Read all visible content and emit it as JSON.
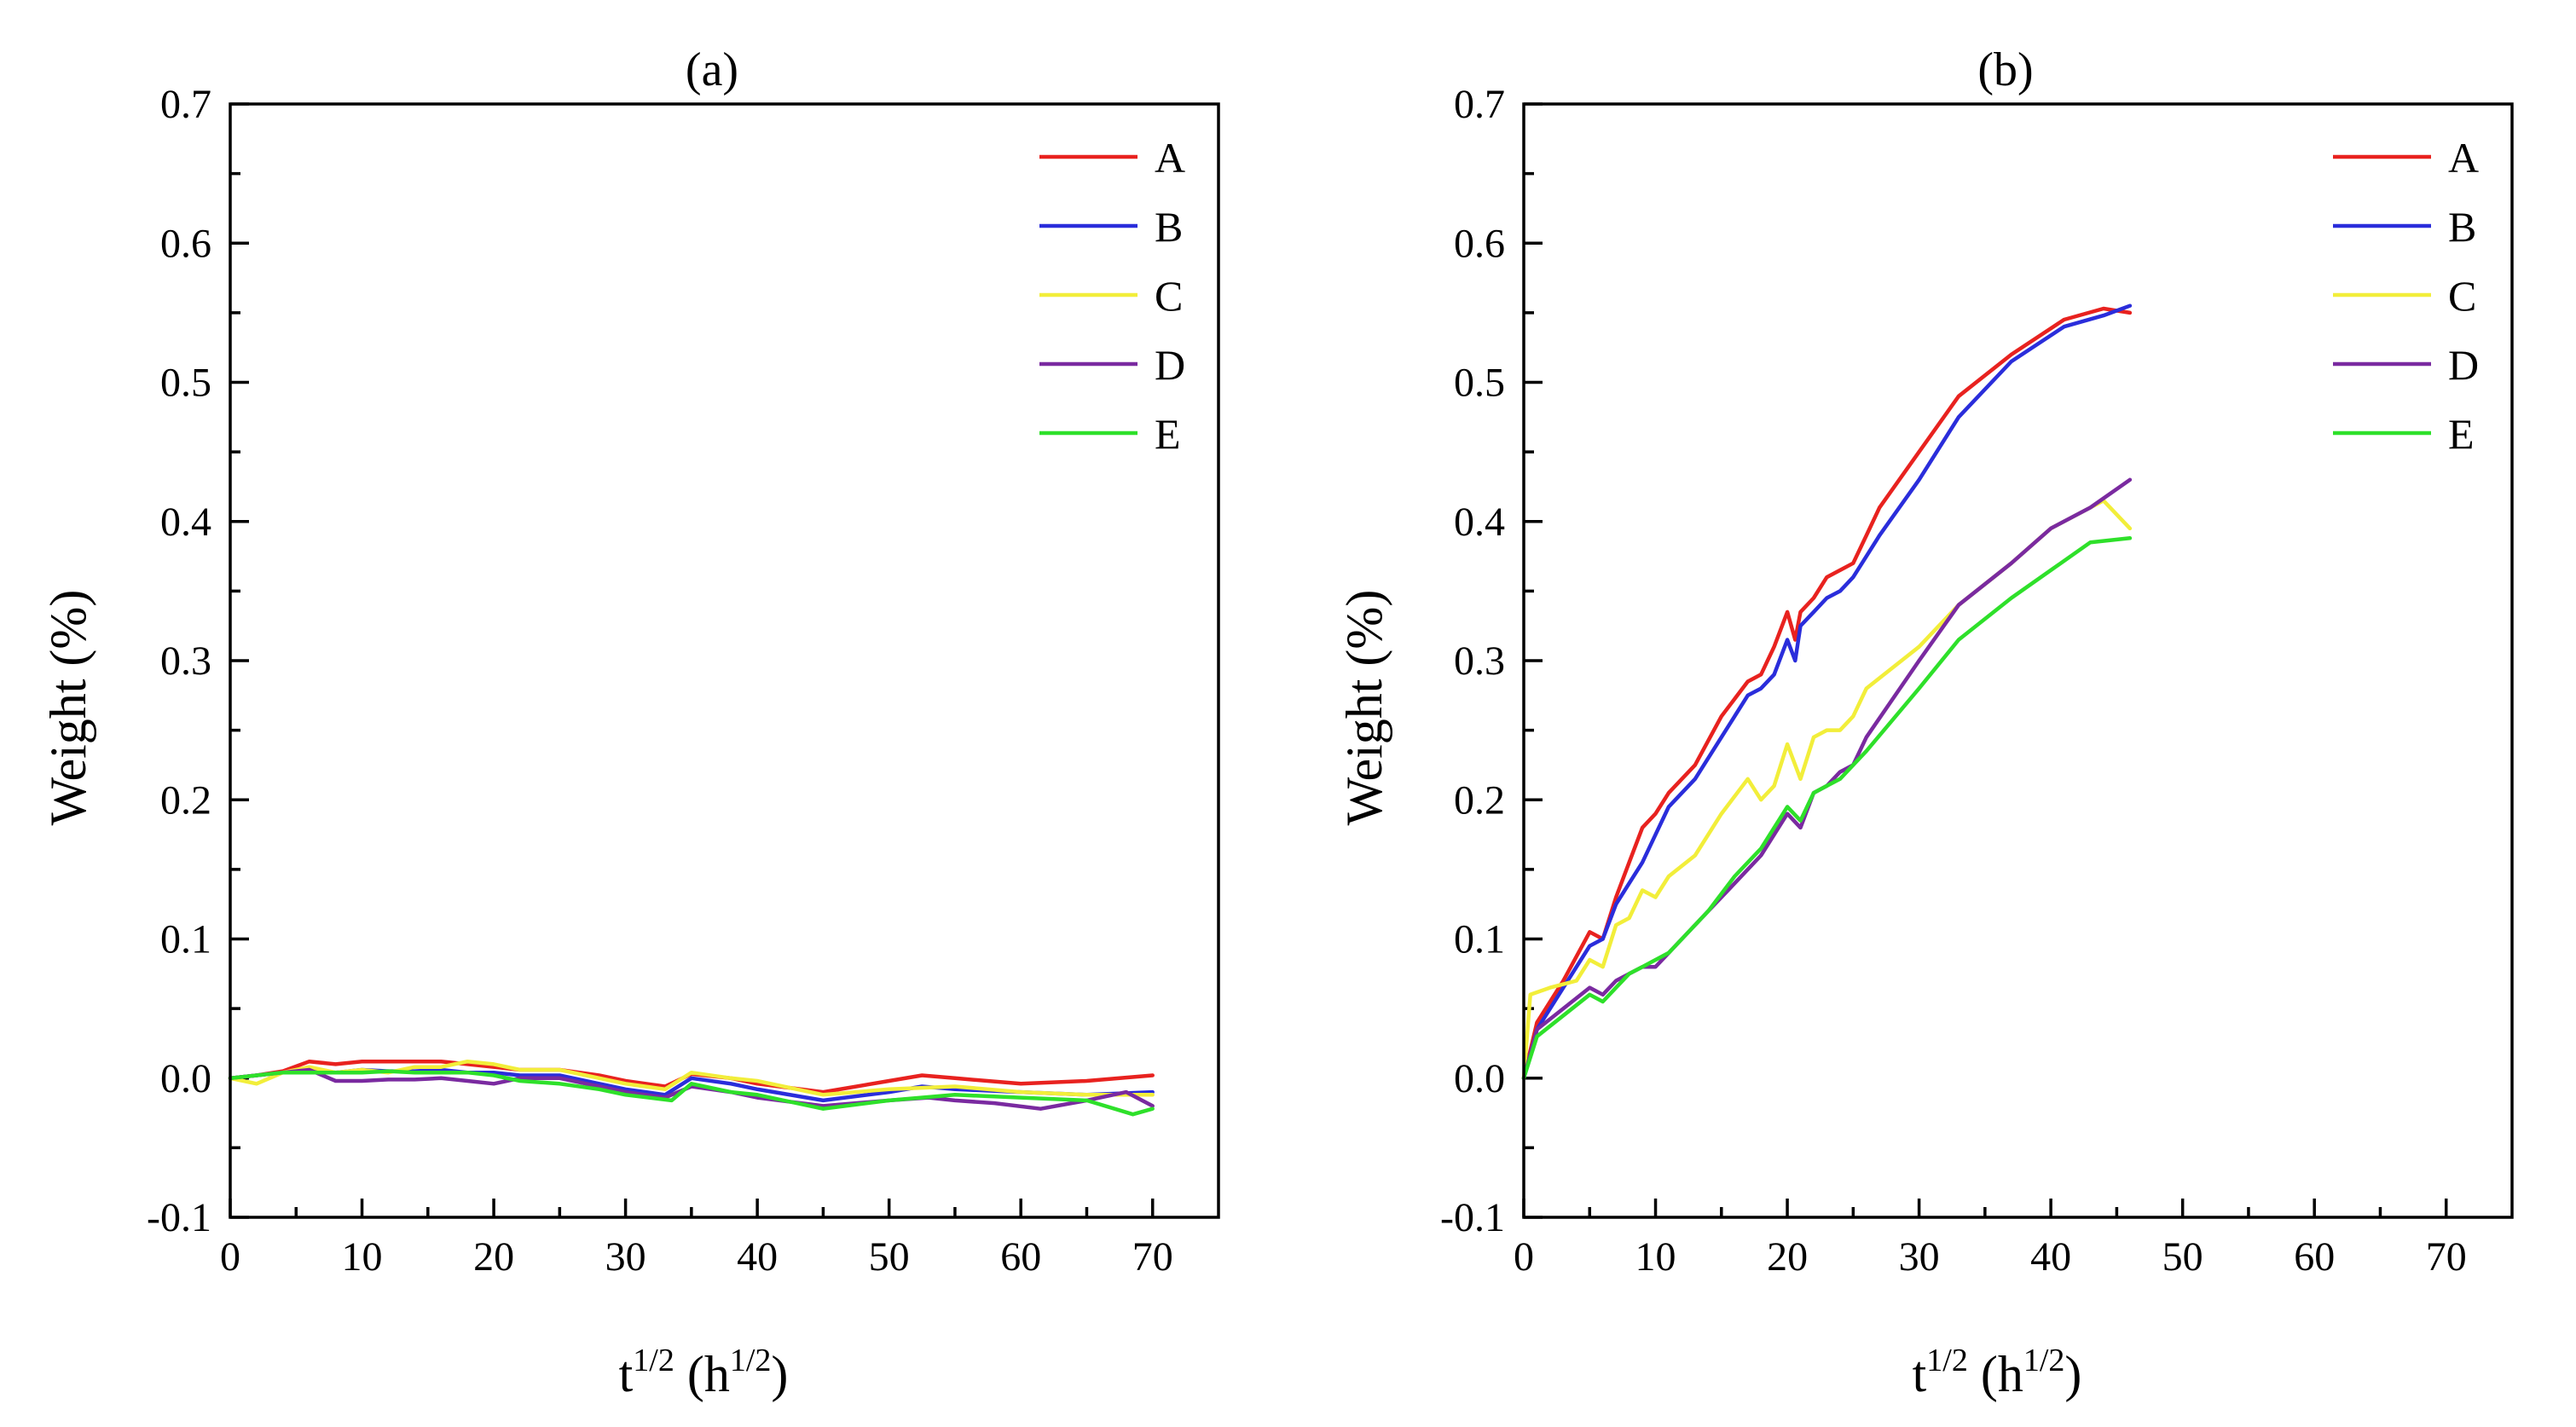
{
  "chart_data": [
    {
      "type": "line",
      "title": "(a)",
      "xlabel_base": "t",
      "xlabel_base_sup": "1/2",
      "xlabel_unit": "h",
      "xlabel_unit_sup": "1/2",
      "ylabel": "Weight (%)",
      "xlim": [
        0,
        75
      ],
      "ylim": [
        -0.1,
        0.7
      ],
      "xticks": [
        0,
        10,
        20,
        30,
        40,
        50,
        60,
        70
      ],
      "xtick_labels": [
        "0",
        "10",
        "20",
        "30",
        "40",
        "50",
        "60",
        "70"
      ],
      "yticks": [
        -0.1,
        0,
        0.1,
        0.2,
        0.3,
        0.4,
        0.5,
        0.6,
        0.7
      ],
      "ytick_labels": [
        "-0.1",
        "0.0",
        "0.1",
        "0.2",
        "0.3",
        "0.4",
        "0.5",
        "0.6",
        "0.7"
      ],
      "grid": false,
      "legend_position": "top-right",
      "series": [
        {
          "name": "A",
          "color": "#e8221f",
          "x": [
            0,
            2,
            4,
            6,
            8,
            10,
            12,
            14,
            16,
            18,
            20,
            22,
            25,
            28,
            30,
            33,
            35,
            38,
            40,
            45,
            50,
            52.5,
            55,
            60,
            65,
            70
          ],
          "y": [
            0,
            0.002,
            0.005,
            0.012,
            0.01,
            0.012,
            0.012,
            0.012,
            0.012,
            0.01,
            0.008,
            0.006,
            0.006,
            0.002,
            -0.002,
            -0.006,
            0.003,
            0.0,
            -0.004,
            -0.01,
            -0.002,
            0.002,
            0.0,
            -0.004,
            -0.002,
            0.002
          ]
        },
        {
          "name": "B",
          "color": "#2a2ddb",
          "x": [
            0,
            2,
            4,
            6,
            8,
            10,
            12,
            14,
            16,
            18,
            20,
            22,
            25,
            28,
            30,
            33,
            35,
            38,
            40,
            45,
            50,
            52.5,
            55,
            60,
            65,
            70
          ],
          "y": [
            0,
            0.002,
            0.004,
            0.006,
            0.004,
            0.006,
            0.005,
            0.005,
            0.006,
            0.004,
            0.004,
            0.002,
            0.002,
            -0.004,
            -0.008,
            -0.012,
            0.0,
            -0.004,
            -0.008,
            -0.016,
            -0.01,
            -0.006,
            -0.008,
            -0.01,
            -0.012,
            -0.01
          ]
        },
        {
          "name": "C",
          "color": "#f2ee3a",
          "x": [
            0,
            2,
            4,
            6,
            8,
            10,
            12,
            14,
            16,
            18,
            20,
            22,
            25,
            28,
            30,
            33,
            35,
            38,
            40,
            45,
            50,
            55,
            60,
            65,
            70
          ],
          "y": [
            0,
            -0.004,
            0.004,
            0.008,
            0.004,
            0.006,
            0.004,
            0.008,
            0.008,
            0.012,
            0.01,
            0.006,
            0.006,
            0.0,
            -0.004,
            -0.008,
            0.004,
            0.0,
            -0.002,
            -0.012,
            -0.008,
            -0.006,
            -0.01,
            -0.012,
            -0.012
          ]
        },
        {
          "name": "D",
          "color": "#7a2aa0",
          "x": [
            0,
            2,
            4,
            6,
            8,
            10,
            12,
            14,
            16,
            18,
            20,
            22,
            25,
            28,
            30,
            33,
            35,
            38,
            40,
            45,
            50,
            53,
            55,
            58,
            61.5,
            65,
            68,
            70
          ],
          "y": [
            0,
            0.002,
            0.004,
            0.006,
            -0.002,
            -0.002,
            -0.001,
            -0.001,
            0.0,
            -0.002,
            -0.004,
            0.0,
            0.0,
            -0.006,
            -0.01,
            -0.014,
            -0.006,
            -0.01,
            -0.014,
            -0.02,
            -0.016,
            -0.014,
            -0.016,
            -0.018,
            -0.022,
            -0.016,
            -0.01,
            -0.02
          ]
        },
        {
          "name": "E",
          "color": "#2ee02a",
          "x": [
            0,
            2,
            4,
            6,
            8,
            10,
            12,
            14,
            16,
            18,
            20,
            22,
            25,
            28,
            30,
            33.5,
            35,
            38,
            40,
            45,
            50,
            55,
            60,
            65,
            68.5,
            70
          ],
          "y": [
            0,
            0.002,
            0.004,
            0.004,
            0.004,
            0.004,
            0.005,
            0.004,
            0.004,
            0.004,
            0.002,
            -0.002,
            -0.004,
            -0.008,
            -0.012,
            -0.016,
            -0.004,
            -0.01,
            -0.012,
            -0.022,
            -0.016,
            -0.012,
            -0.014,
            -0.016,
            -0.026,
            -0.022
          ]
        }
      ]
    },
    {
      "type": "line",
      "title": "(b)",
      "xlabel_base": "t",
      "xlabel_base_sup": "1/2",
      "xlabel_unit": "h",
      "xlabel_unit_sup": "1/2",
      "ylabel": "Weight (%)",
      "xlim": [
        0,
        75
      ],
      "ylim": [
        -0.1,
        0.7
      ],
      "xticks": [
        0,
        10,
        20,
        30,
        40,
        50,
        60,
        70
      ],
      "xtick_labels": [
        "0",
        "10",
        "20",
        "30",
        "40",
        "50",
        "60",
        "70"
      ],
      "yticks": [
        -0.1,
        0,
        0.1,
        0.2,
        0.3,
        0.4,
        0.5,
        0.6,
        0.7
      ],
      "ytick_labels": [
        "-0.1",
        "0.0",
        "0.1",
        "0.2",
        "0.3",
        "0.4",
        "0.5",
        "0.6",
        "0.7"
      ],
      "grid": false,
      "legend_position": "top-right",
      "series": [
        {
          "name": "A",
          "color": "#e8221f",
          "x": [
            0,
            1,
            3,
            5,
            6,
            7,
            8,
            9,
            10,
            11,
            13,
            15,
            17,
            18,
            19,
            20,
            20.6,
            21,
            22,
            23,
            24,
            25,
            26,
            27,
            30,
            33,
            37,
            41,
            44,
            46
          ],
          "y": [
            0.0,
            0.04,
            0.07,
            0.105,
            0.1,
            0.13,
            0.155,
            0.18,
            0.19,
            0.205,
            0.225,
            0.26,
            0.285,
            0.29,
            0.31,
            0.335,
            0.315,
            0.335,
            0.345,
            0.36,
            0.365,
            0.37,
            0.39,
            0.41,
            0.45,
            0.49,
            0.52,
            0.545,
            0.553,
            0.55
          ]
        },
        {
          "name": "B",
          "color": "#2a2ddb",
          "x": [
            0,
            1,
            3,
            5,
            6,
            7,
            8,
            9,
            10,
            11,
            13,
            15,
            17,
            18,
            19,
            20,
            20.6,
            21,
            22,
            23,
            24,
            25,
            26,
            27,
            30,
            33,
            37,
            41,
            44,
            46
          ],
          "y": [
            0.0,
            0.035,
            0.065,
            0.095,
            0.1,
            0.125,
            0.14,
            0.155,
            0.175,
            0.195,
            0.215,
            0.245,
            0.275,
            0.28,
            0.29,
            0.315,
            0.3,
            0.325,
            0.335,
            0.345,
            0.35,
            0.36,
            0.375,
            0.39,
            0.43,
            0.475,
            0.515,
            0.54,
            0.548,
            0.555
          ]
        },
        {
          "name": "C",
          "color": "#f2ee3a",
          "x": [
            0,
            0.5,
            2,
            4,
            5,
            6,
            7,
            8,
            9,
            10,
            11,
            13,
            15,
            17,
            18,
            19,
            20,
            21,
            22,
            23,
            24,
            25,
            26,
            30,
            33,
            37,
            40,
            44,
            46
          ],
          "y": [
            0.0,
            0.06,
            0.065,
            0.07,
            0.085,
            0.08,
            0.11,
            0.115,
            0.135,
            0.13,
            0.145,
            0.16,
            0.19,
            0.215,
            0.2,
            0.21,
            0.24,
            0.215,
            0.245,
            0.25,
            0.25,
            0.26,
            0.28,
            0.31,
            0.34,
            0.37,
            0.395,
            0.415,
            0.395
          ]
        },
        {
          "name": "D",
          "color": "#7a2aa0",
          "x": [
            0,
            1,
            3,
            5,
            6,
            7,
            8,
            9,
            10,
            11,
            12,
            14,
            16,
            18,
            20,
            21,
            22,
            23,
            24,
            25,
            26,
            30,
            33,
            37,
            40,
            43,
            46
          ],
          "y": [
            0.0,
            0.035,
            0.05,
            0.065,
            0.06,
            0.07,
            0.075,
            0.08,
            0.08,
            0.09,
            0.1,
            0.12,
            0.14,
            0.16,
            0.19,
            0.18,
            0.205,
            0.21,
            0.22,
            0.225,
            0.245,
            0.3,
            0.34,
            0.37,
            0.395,
            0.41,
            0.43
          ]
        },
        {
          "name": "E",
          "color": "#2ee02a",
          "x": [
            0,
            1,
            3,
            5,
            6,
            7,
            8,
            9,
            10,
            11,
            12,
            14,
            16,
            18,
            20,
            21,
            22,
            23,
            24,
            25,
            26,
            30,
            33,
            37,
            40,
            43,
            46
          ],
          "y": [
            0.0,
            0.03,
            0.045,
            0.06,
            0.055,
            0.065,
            0.075,
            0.08,
            0.085,
            0.09,
            0.1,
            0.12,
            0.145,
            0.165,
            0.195,
            0.185,
            0.205,
            0.21,
            0.215,
            0.225,
            0.235,
            0.28,
            0.315,
            0.345,
            0.365,
            0.385,
            0.388
          ]
        }
      ]
    }
  ]
}
